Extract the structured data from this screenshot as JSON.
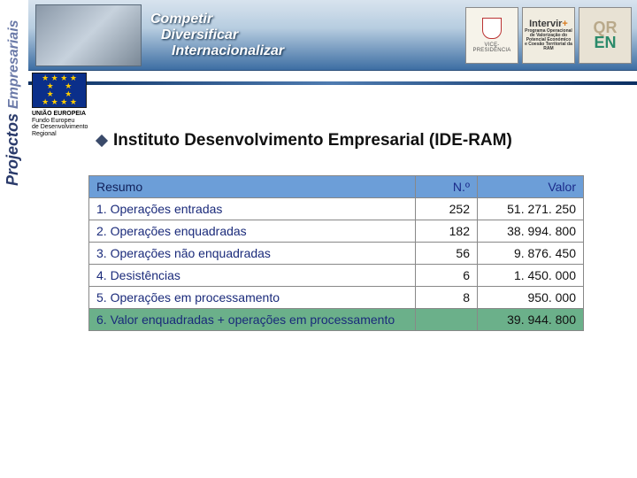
{
  "sidebar": {
    "main": "Projectos",
    "sub": "Empresariais"
  },
  "banner": {
    "line1": "Competir",
    "line2": "Diversificar",
    "line3": "Internacionalizar",
    "logos": {
      "vp_label": "VICE-PRESIDÊNCIA",
      "intervir": "Intervir",
      "intervir_plus": "+",
      "intervir_sub": "Programa Operacional de Valorização do Potencial Económico e Coesão Territorial da RAM",
      "qren_line1": "QR",
      "qren_line2": "EN"
    }
  },
  "eu": {
    "title": "UNIÃO EUROPEIA",
    "line1": "Fundo Europeu",
    "line2": "de Desenvolvimento",
    "line3": "Regional",
    "stars": "★ ★ ★ ★\n★     ★\n★     ★\n★ ★ ★ ★"
  },
  "page_title": "Instituto Desenvolvimento Empresarial (IDE-RAM)",
  "table": {
    "headers": {
      "resumo": "Resumo",
      "num": "N.º",
      "valor": "Valor"
    },
    "rows": [
      {
        "label": "1. Operações entradas",
        "num": "252",
        "valor": "51. 271. 250"
      },
      {
        "label": "2. Operações enquadradas",
        "num": "182",
        "valor": "38. 994. 800"
      },
      {
        "label": "3. Operações não enquadradas",
        "num": "56",
        "valor": "9. 876. 450"
      },
      {
        "label": "4. Desistências",
        "num": "6",
        "valor": "1. 450. 000"
      },
      {
        "label": "5. Operações em processamento",
        "num": "8",
        "valor": "950. 000"
      }
    ],
    "summary": {
      "label": "6. Valor enquadradas + operações em processamento",
      "num": "",
      "valor": "39. 944. 800"
    },
    "colors": {
      "header_bg": "#6c9ed8",
      "summary_bg": "#6bb08a",
      "border": "#888888",
      "label_text": "#1a2a7a"
    }
  }
}
